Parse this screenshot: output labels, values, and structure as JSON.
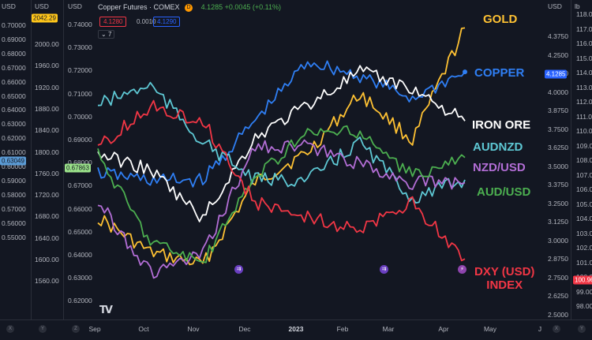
{
  "header": {
    "symbol_title": "Copper Futures · COMEX",
    "badge": "D",
    "ohlc_text": "4.1285 +0.0045 (+0.11%)",
    "sell_price": "4.1280",
    "spread": "0.0010",
    "buy_price": "4.1290",
    "collapse_label": "7"
  },
  "axes": {
    "axis1": {
      "header": "USD",
      "ticks": [
        "0.70000",
        "0.69000",
        "0.68000",
        "0.67000",
        "0.66000",
        "0.65000",
        "0.64000",
        "0.63000",
        "0.62000",
        "0.61000",
        "0.60000",
        "0.59000",
        "0.58000",
        "0.57000",
        "0.56000",
        "0.55000"
      ],
      "tag": "0.63049",
      "tag_color": "#5b9bd5"
    },
    "axis2": {
      "header": "USD",
      "ticks": [
        "2000.00",
        "1960.00",
        "1920.00",
        "1880.00",
        "1840.00",
        "1800.00",
        "1760.00",
        "1720.00",
        "1680.00",
        "1640.00",
        "1600.00",
        "1560.00"
      ],
      "tag": "2042.29",
      "tag_color": "#ffc61a"
    },
    "axis3": {
      "header": "USD",
      "ticks": [
        "0.74000",
        "0.73000",
        "0.72000",
        "0.71000",
        "0.70000",
        "0.69000",
        "0.68000",
        "0.67000",
        "0.66000",
        "0.65000",
        "0.64000",
        "0.63000",
        "0.62000"
      ],
      "tag": "0.67863",
      "tag_color": "#9be28a"
    },
    "axis4": {
      "header": "USD",
      "ticks": [
        "4.3750",
        "4.2500",
        "4.1250",
        "4.0000",
        "3.8750",
        "3.7500",
        "3.6250",
        "3.5000",
        "3.3750",
        "3.2500",
        "3.1250",
        "3.0000",
        "2.8750",
        "2.7500",
        "2.6250",
        "2.5000"
      ],
      "tag": "4.1285",
      "tag_color": "#2962ff"
    },
    "axis5": {
      "header": "lb",
      "ticks": [
        "118.00",
        "117.00",
        "116.00",
        "115.00",
        "114.00",
        "113.00",
        "112.00",
        "111.00",
        "110.00",
        "109.00",
        "108.00",
        "107.00",
        "106.00",
        "105.00",
        "104.00",
        "103.00",
        "102.00",
        "101.00",
        "100.00",
        "99.00",
        "98.00"
      ],
      "tag": "100.96",
      "tag_color": "#f23645"
    }
  },
  "x_axis": {
    "ticks": [
      "Sep",
      "Oct",
      "Nov",
      "Dec",
      "2023",
      "Feb",
      "Mar",
      "Apr",
      "May",
      "J"
    ],
    "bold_tick": "2023"
  },
  "axis_buttons": [
    "X",
    "Y",
    "Z",
    "X",
    "Y"
  ],
  "labels": {
    "gold": "GOLD",
    "copper": "COPPER",
    "iron_ore": "IRON ORE",
    "audnzd": "AUDNZD",
    "nzdusd": "NZD/USD",
    "audusd": "AUD/USD",
    "dxy": "DXY (USD)\nINDEX"
  },
  "colors": {
    "gold": "#ffc233",
    "copper": "#2f7ff5",
    "iron_ore": "#ffffff",
    "audnzd": "#5ec8d4",
    "nzdusd": "#b36ed6",
    "audusd": "#4caf50",
    "dxy": "#f23645"
  },
  "chart_data": {
    "type": "line",
    "title": "Copper Futures · COMEX",
    "x": [
      "Sep",
      "Oct",
      "Nov",
      "Dec",
      "2023",
      "Feb",
      "Mar",
      "Apr"
    ],
    "series": [
      {
        "name": "GOLD",
        "unit": "USD",
        "values": [
          1720,
          1660,
          1640,
          1780,
          1830,
          1930,
          1850,
          2042
        ]
      },
      {
        "name": "COPPER",
        "unit": "USD/lb",
        "values": [
          3.45,
          3.4,
          3.4,
          3.8,
          4.2,
          4.1,
          3.95,
          4.1285
        ]
      },
      {
        "name": "IRON ORE",
        "unit": "USD",
        "values": [
          100,
          95,
          80,
          105,
          115,
          125,
          120,
          110
        ]
      },
      {
        "name": "AUDNZD",
        "unit": "NZD",
        "values": [
          1.12,
          1.13,
          1.1,
          1.08,
          1.08,
          1.1,
          1.07,
          1.08
        ]
      },
      {
        "name": "NZD/USD",
        "unit": "USD",
        "values": [
          0.61,
          0.57,
          0.58,
          0.64,
          0.64,
          0.63,
          0.62,
          0.62
        ]
      },
      {
        "name": "AUD/USD",
        "unit": "USD",
        "values": [
          0.68,
          0.64,
          0.63,
          0.67,
          0.69,
          0.69,
          0.67,
          0.67863
        ]
      },
      {
        "name": "DXY (USD) INDEX",
        "unit": "index",
        "values": [
          109,
          112,
          111,
          105,
          104,
          103,
          105,
          100.96
        ]
      }
    ]
  }
}
